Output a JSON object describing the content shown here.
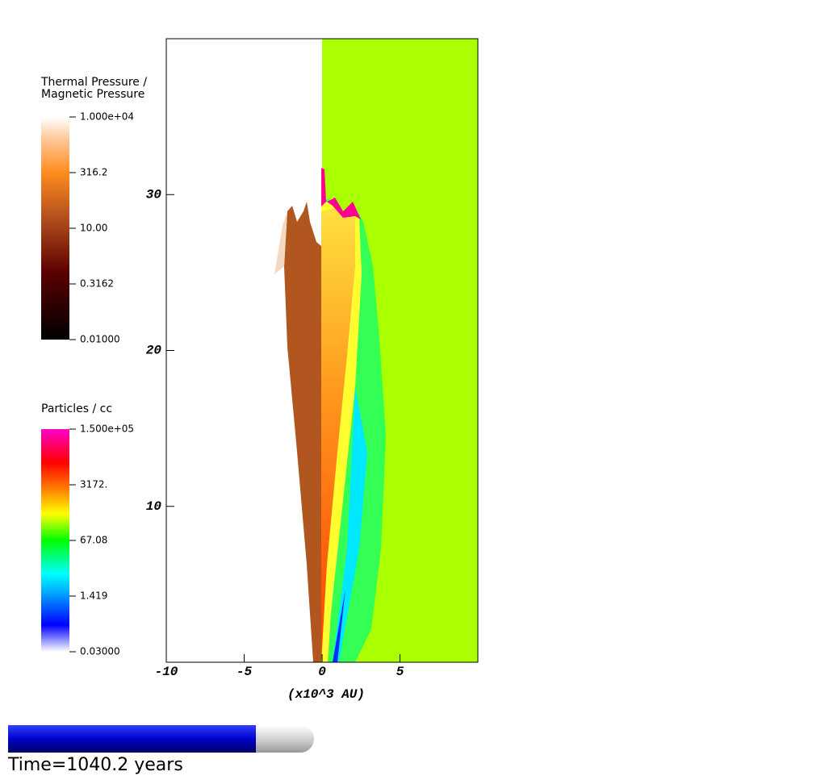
{
  "chart_data": {
    "type": "field",
    "xlabel": "(x10^3 AU)",
    "xlim": [
      -10,
      10
    ],
    "ylim": [
      0,
      40
    ],
    "xticks": [
      -10,
      -5,
      0,
      5
    ],
    "yticks": [
      10,
      20,
      30
    ],
    "background_color": "#aaff00",
    "colorbars": [
      {
        "title": [
          "Thermal Pressure /",
          "Magnetic Pressure"
        ],
        "log": true,
        "range": [
          0.01,
          10000
        ],
        "ticks": [
          {
            "value": 10000,
            "label": "1.000e+04"
          },
          316.2,
          {
            "value": 10,
            "label": "10.00"
          },
          0.3162,
          {
            "value": 0.01,
            "label": "0.01000"
          }
        ]
      },
      {
        "title": [
          "Particles / cc"
        ],
        "log": true,
        "range": [
          0.03,
          150000
        ],
        "ticks": [
          {
            "value": 150000,
            "label": "1.500e+05"
          },
          {
            "value": 3172,
            "label": "3172."
          },
          67.08,
          1.419,
          {
            "value": 0.03,
            "label": "0.03000"
          }
        ]
      }
    ],
    "time_label": "Time=1040.2 years",
    "progress": 0.81
  }
}
